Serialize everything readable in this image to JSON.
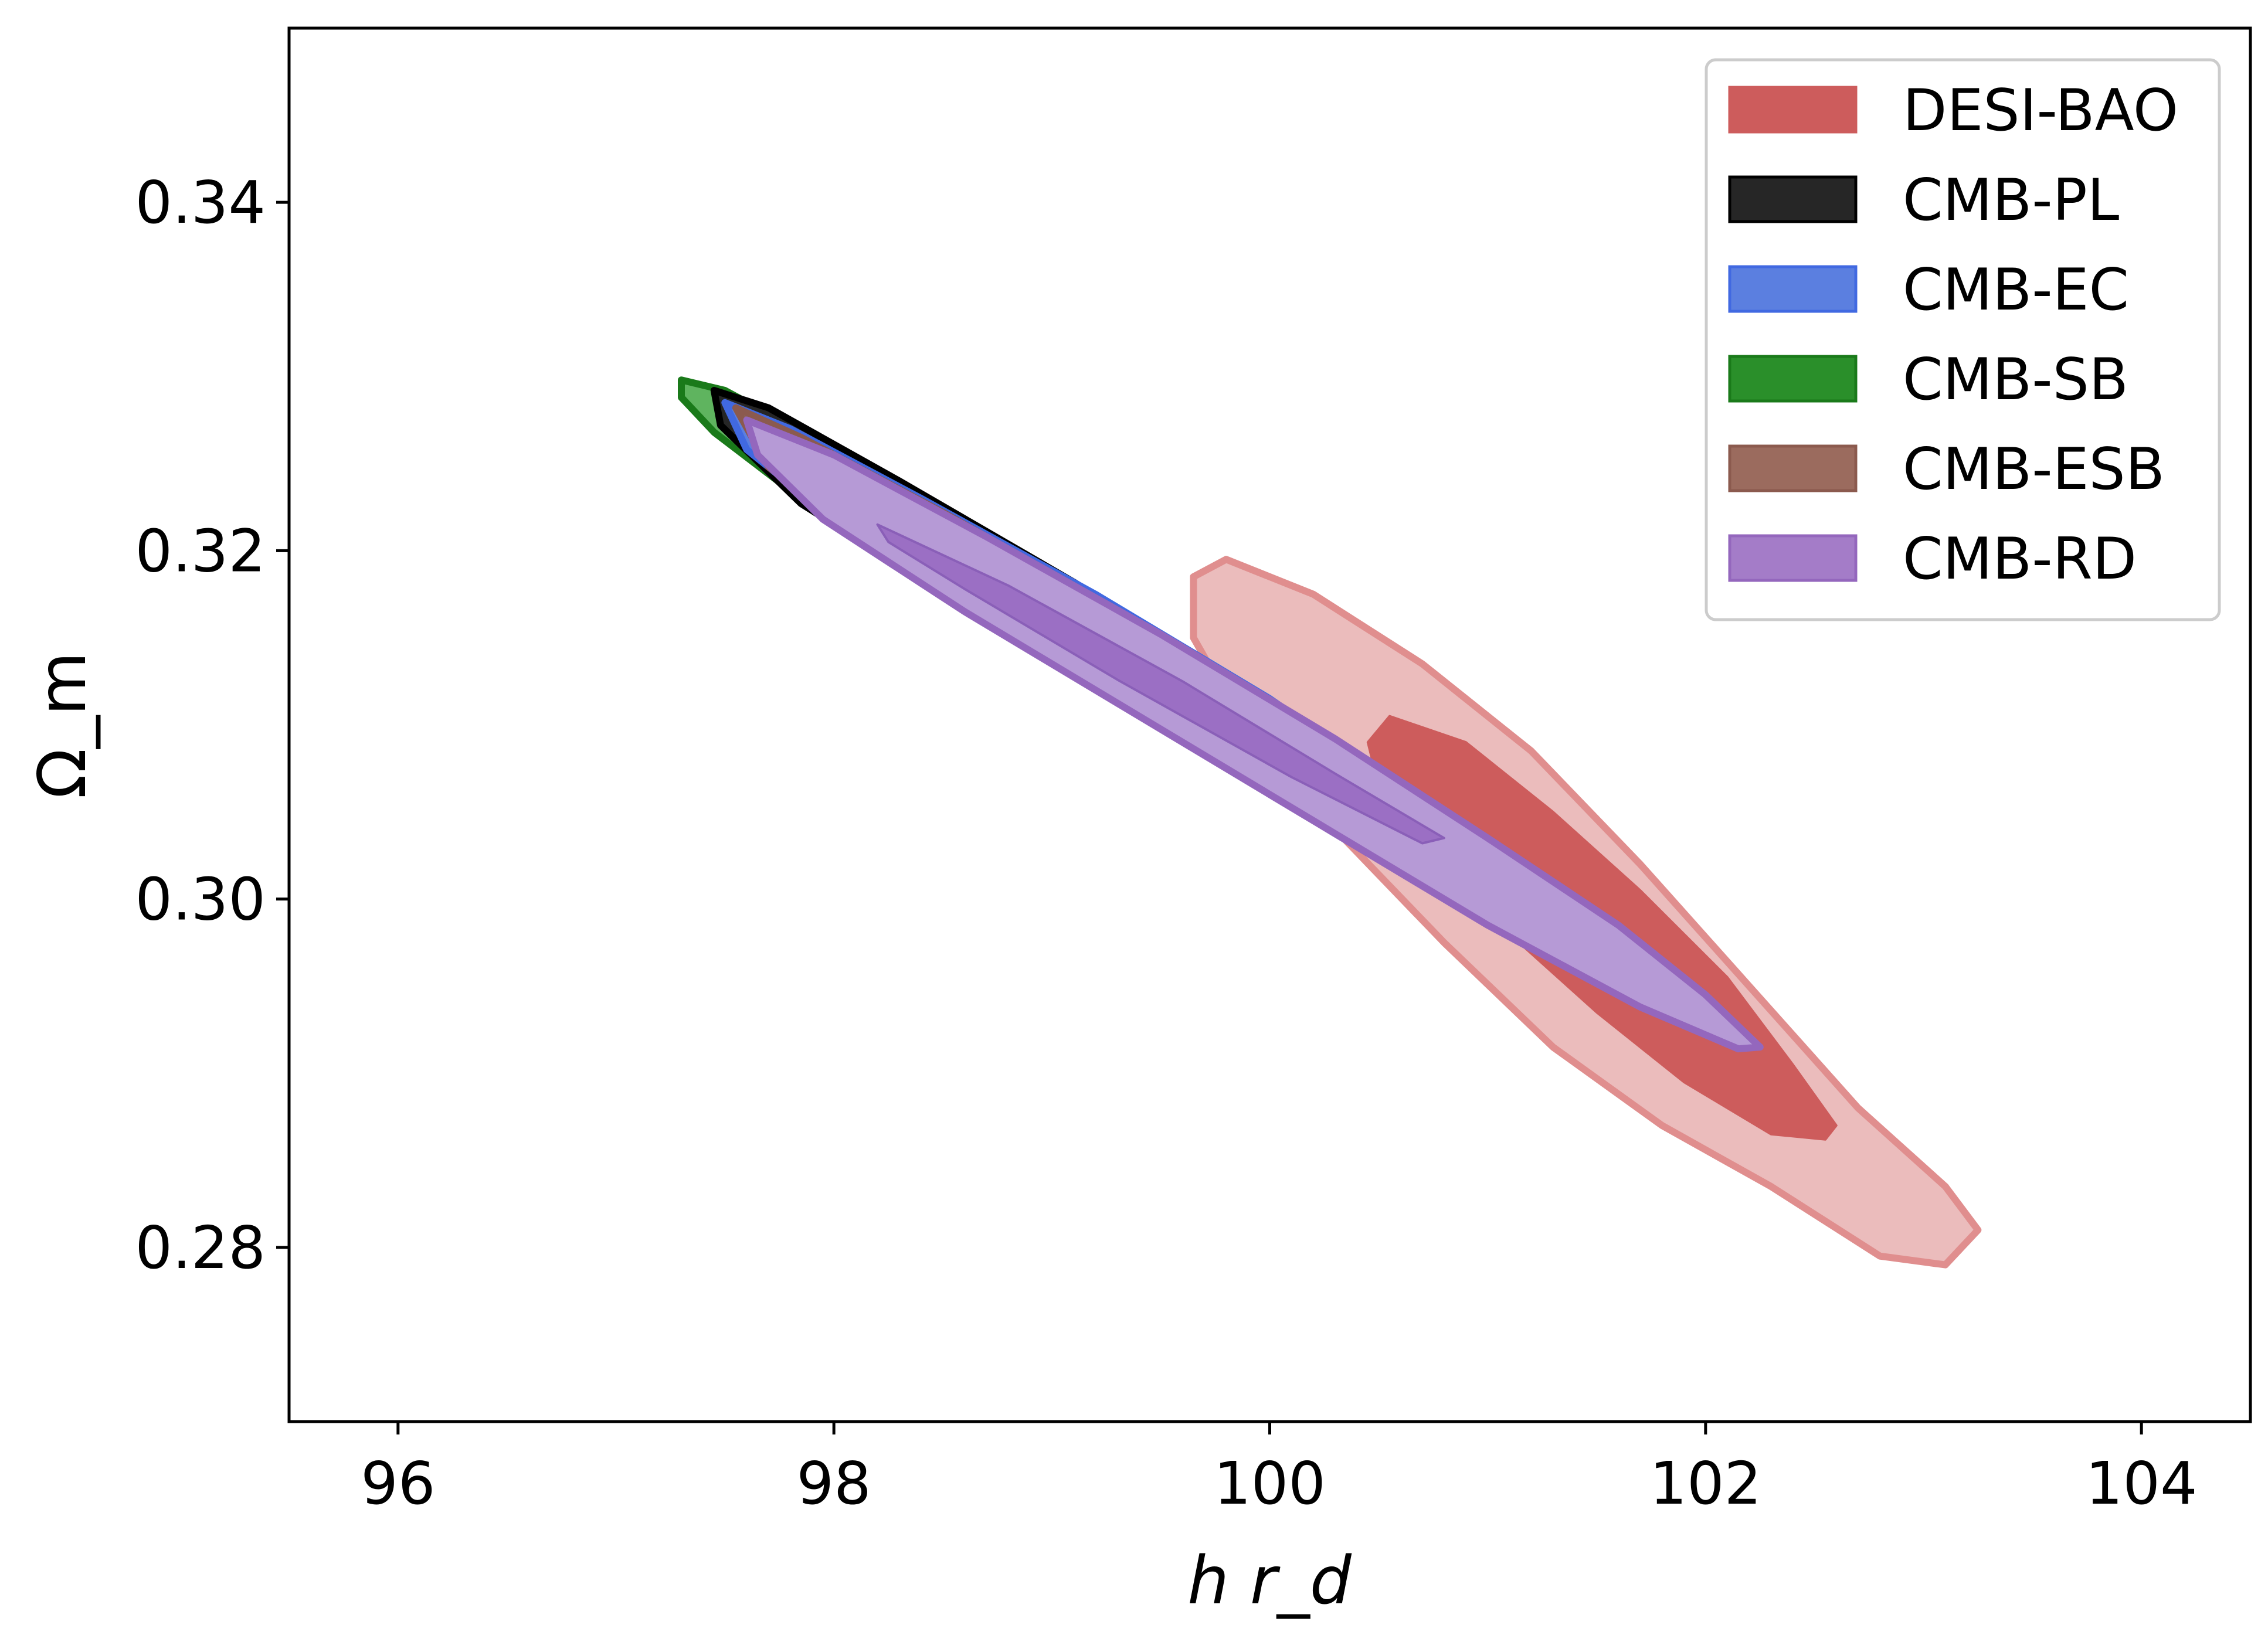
{
  "chart_data": {
    "type": "contour",
    "title": "",
    "xlabel": "h r_d",
    "ylabel": "Ω_m",
    "xlim": [
      95.5,
      104.5
    ],
    "ylim": [
      0.27,
      0.35
    ],
    "xticks": [
      96,
      98,
      100,
      102,
      104
    ],
    "xtick_labels": [
      "96",
      "98",
      "100",
      "102",
      "104"
    ],
    "yticks": [
      0.28,
      0.3,
      0.32,
      0.34
    ],
    "ytick_labels": [
      "0.28",
      "0.30",
      "0.32",
      "0.34"
    ],
    "grid": false,
    "legend": {
      "position": "top-right",
      "entries": [
        {
          "name": "DESI-BAO",
          "color": "#cd5c5c",
          "edge": "#cd5c5c"
        },
        {
          "name": "CMB-PL",
          "color": "#262626",
          "edge": "#000000"
        },
        {
          "name": "CMB-EC",
          "color": "#5b7fe0",
          "edge": "#4169e1"
        },
        {
          "name": "CMB-SB",
          "color": "#2a8f2a",
          "edge": "#1a7a1a"
        },
        {
          "name": "CMB-ESB",
          "color": "#9b6b5e",
          "edge": "#8b5a4e"
        },
        {
          "name": "CMB-RD",
          "color": "#a47cc8",
          "edge": "#9467bd"
        }
      ]
    },
    "series": [
      {
        "name": "DESI-BAO",
        "contours": [
          {
            "level": "95%",
            "color": "#ebbcbc",
            "edge": "#e08e8e",
            "points": [
              [
                99.8,
                0.3195
              ],
              [
                100.2,
                0.3175
              ],
              [
                100.7,
                0.3135
              ],
              [
                101.2,
                0.3085
              ],
              [
                101.7,
                0.302
              ],
              [
                102.2,
                0.295
              ],
              [
                102.7,
                0.288
              ],
              [
                103.1,
                0.2835
              ],
              [
                103.25,
                0.281
              ],
              [
                103.1,
                0.279
              ],
              [
                102.8,
                0.2795
              ],
              [
                102.3,
                0.2835
              ],
              [
                101.8,
                0.287
              ],
              [
                101.3,
                0.2915
              ],
              [
                100.8,
                0.2975
              ],
              [
                100.3,
                0.304
              ],
              [
                99.9,
                0.3095
              ],
              [
                99.65,
                0.315
              ],
              [
                99.65,
                0.3185
              ]
            ]
          },
          {
            "level": "68%",
            "color": "#cd5c5c",
            "edge": "#cd5c5c",
            "points": [
              [
                100.55,
                0.3105
              ],
              [
                100.9,
                0.309
              ],
              [
                101.3,
                0.305
              ],
              [
                101.7,
                0.3005
              ],
              [
                102.1,
                0.2955
              ],
              [
                102.4,
                0.2905
              ],
              [
                102.6,
                0.287
              ],
              [
                102.55,
                0.2862
              ],
              [
                102.3,
                0.2865
              ],
              [
                101.9,
                0.2895
              ],
              [
                101.5,
                0.2935
              ],
              [
                101.1,
                0.298
              ],
              [
                100.75,
                0.3025
              ],
              [
                100.5,
                0.3065
              ],
              [
                100.45,
                0.309
              ]
            ]
          }
        ]
      },
      {
        "name": "CMB-SB",
        "contours": [
          {
            "level": "95%",
            "color": "#5fb45f",
            "edge": "#1a7a1a",
            "points": [
              [
                97.3,
                0.3298
              ],
              [
                97.5,
                0.3292
              ],
              [
                98.2,
                0.3245
              ],
              [
                99.0,
                0.3188
              ],
              [
                99.8,
                0.3128
              ],
              [
                100.5,
                0.3068
              ],
              [
                101.0,
                0.3022
              ],
              [
                101.3,
                0.2988
              ],
              [
                101.25,
                0.2982
              ],
              [
                100.9,
                0.3002
              ],
              [
                100.2,
                0.3052
              ],
              [
                99.4,
                0.3112
              ],
              [
                98.6,
                0.3172
              ],
              [
                97.9,
                0.3225
              ],
              [
                97.45,
                0.3268
              ],
              [
                97.3,
                0.3288
              ]
            ]
          }
        ]
      },
      {
        "name": "CMB-PL",
        "contours": [
          {
            "level": "95%",
            "color": "#262626",
            "edge": "#000000",
            "points": [
              [
                97.45,
                0.3292
              ],
              [
                97.7,
                0.3282
              ],
              [
                98.3,
                0.324
              ],
              [
                99.1,
                0.3182
              ],
              [
                99.9,
                0.312
              ],
              [
                100.6,
                0.306
              ],
              [
                101.05,
                0.3015
              ],
              [
                101.28,
                0.2985
              ],
              [
                101.2,
                0.2982
              ],
              [
                100.8,
                0.3008
              ],
              [
                100.1,
                0.3056
              ],
              [
                99.3,
                0.3115
              ],
              [
                98.5,
                0.3176
              ],
              [
                97.85,
                0.3227
              ],
              [
                97.48,
                0.3272
              ]
            ]
          }
        ]
      },
      {
        "name": "CMB-EC",
        "contours": [
          {
            "level": "95%",
            "color": "#5b7fe0",
            "edge": "#4169e1",
            "points": [
              [
                97.5,
                0.3285
              ],
              [
                97.8,
                0.327
              ],
              [
                98.4,
                0.323
              ],
              [
                99.2,
                0.3175
              ],
              [
                100.0,
                0.3115
              ],
              [
                100.7,
                0.3055
              ],
              [
                101.1,
                0.301
              ],
              [
                101.22,
                0.2988
              ],
              [
                101.0,
                0.2995
              ],
              [
                100.4,
                0.3035
              ],
              [
                99.6,
                0.3095
              ],
              [
                98.8,
                0.3155
              ],
              [
                98.1,
                0.3208
              ],
              [
                97.6,
                0.3258
              ]
            ]
          }
        ]
      },
      {
        "name": "CMB-ESB",
        "contours": [
          {
            "level": "95%",
            "color": "#8a6e66",
            "edge": "#8b5a4e",
            "points": [
              [
                97.55,
                0.3282
              ],
              [
                97.85,
                0.3265
              ],
              [
                98.5,
                0.3222
              ],
              [
                99.3,
                0.3166
              ],
              [
                100.1,
                0.3106
              ],
              [
                100.75,
                0.3048
              ],
              [
                101.12,
                0.3005
              ],
              [
                101.0,
                0.2998
              ],
              [
                100.45,
                0.3032
              ],
              [
                99.7,
                0.3088
              ],
              [
                98.9,
                0.3147
              ],
              [
                98.2,
                0.3202
              ],
              [
                97.7,
                0.3248
              ]
            ]
          }
        ]
      },
      {
        "name": "CMB-RD",
        "contours": [
          {
            "level": "95%",
            "color": "#b69ad6",
            "edge": "#9467bd",
            "points": [
              [
                97.6,
                0.3275
              ],
              [
                98.0,
                0.3255
              ],
              [
                98.7,
                0.3208
              ],
              [
                99.5,
                0.3152
              ],
              [
                100.3,
                0.3092
              ],
              [
                101.0,
                0.3035
              ],
              [
                101.6,
                0.2985
              ],
              [
                102.0,
                0.2945
              ],
              [
                102.25,
                0.2915
              ],
              [
                102.15,
                0.2914
              ],
              [
                101.7,
                0.2938
              ],
              [
                101.0,
                0.2985
              ],
              [
                100.2,
                0.3045
              ],
              [
                99.4,
                0.3105
              ],
              [
                98.6,
                0.3165
              ],
              [
                97.95,
                0.3218
              ],
              [
                97.65,
                0.3255
              ]
            ]
          },
          {
            "level": "68%",
            "color": "#9b6fc4",
            "edge": "#8a5fb8",
            "points": [
              [
                98.2,
                0.3215
              ],
              [
                98.8,
                0.318
              ],
              [
                99.6,
                0.3125
              ],
              [
                100.3,
                0.3072
              ],
              [
                100.8,
                0.3035
              ],
              [
                100.7,
                0.3032
              ],
              [
                100.1,
                0.307
              ],
              [
                99.3,
                0.3126
              ],
              [
                98.6,
                0.3178
              ],
              [
                98.25,
                0.3205
              ]
            ]
          }
        ]
      }
    ]
  }
}
